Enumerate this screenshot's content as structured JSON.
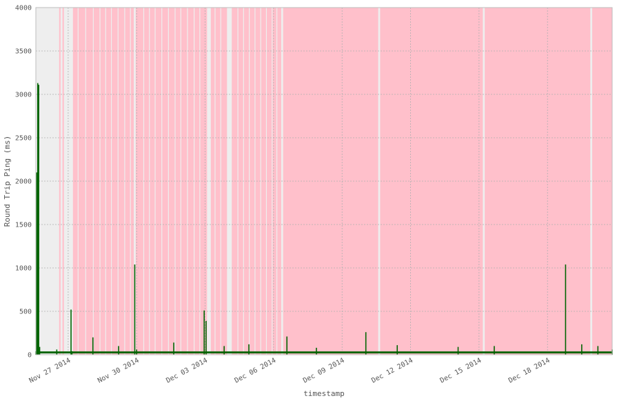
{
  "chart_data": {
    "type": "line",
    "title": "",
    "xlabel": "timestamp",
    "ylabel": "Round Trip Ping (ms)",
    "x_range": [
      "2014-11-25T14:00",
      "2014-12-20T20:00"
    ],
    "ylim": [
      0,
      4000
    ],
    "yticks": [
      0,
      500,
      1000,
      1500,
      2000,
      2500,
      3000,
      3500,
      4000
    ],
    "xticks": [
      {
        "value": "2014-11-27",
        "label": "Nov 27 2014"
      },
      {
        "value": "2014-11-30",
        "label": "Nov 30 2014"
      },
      {
        "value": "2014-12-03",
        "label": "Dec 03 2014"
      },
      {
        "value": "2014-12-06",
        "label": "Dec 06 2014"
      },
      {
        "value": "2014-12-09",
        "label": "Dec 09 2014"
      },
      {
        "value": "2014-12-12",
        "label": "Dec 12 2014"
      },
      {
        "value": "2014-12-15",
        "label": "Dec 15 2014"
      },
      {
        "value": "2014-12-18",
        "label": "Dec 18 2014"
      }
    ],
    "grid": true,
    "background_color": "#eeeeee",
    "highlight_color": "#ffc0cb",
    "line_color": "#006400",
    "series": [
      {
        "baseline_ms": 30,
        "points": [
          {
            "x": "2014-11-25T14:00",
            "y": 40
          },
          {
            "x": "2014-11-25T15:00",
            "y": 2100
          },
          {
            "x": "2014-11-25T16:00",
            "y": 3130
          },
          {
            "x": "2014-11-25T17:00",
            "y": 3110
          },
          {
            "x": "2014-11-25T18:00",
            "y": 90
          },
          {
            "x": "2014-11-26T12:00",
            "y": 60
          },
          {
            "x": "2014-11-27T03:00",
            "y": 520
          },
          {
            "x": "2014-11-27T04:00",
            "y": 40
          },
          {
            "x": "2014-11-28T02:00",
            "y": 200
          },
          {
            "x": "2014-11-29T05:00",
            "y": 100
          },
          {
            "x": "2014-11-29T22:00",
            "y": 1040
          },
          {
            "x": "2014-11-30T00:00",
            "y": 60
          },
          {
            "x": "2014-12-01T15:00",
            "y": 140
          },
          {
            "x": "2014-12-02T23:00",
            "y": 510
          },
          {
            "x": "2014-12-03T01:00",
            "y": 390
          },
          {
            "x": "2014-12-03T20:00",
            "y": 100
          },
          {
            "x": "2014-12-04T22:00",
            "y": 120
          },
          {
            "x": "2014-12-06T14:00",
            "y": 210
          },
          {
            "x": "2014-12-07T21:00",
            "y": 80
          },
          {
            "x": "2014-12-10T01:00",
            "y": 260
          },
          {
            "x": "2014-12-11T10:00",
            "y": 110
          },
          {
            "x": "2014-12-14T02:00",
            "y": 90
          },
          {
            "x": "2014-12-15T16:00",
            "y": 100
          },
          {
            "x": "2014-12-18T19:00",
            "y": 1040
          },
          {
            "x": "2014-12-19T12:00",
            "y": 120
          },
          {
            "x": "2014-12-20T05:00",
            "y": 100
          },
          {
            "x": "2014-12-20T20:00",
            "y": 60
          }
        ]
      }
    ],
    "highlight_spans": [
      [
        "2014-11-26T14:30",
        "2014-11-26T16:00"
      ],
      [
        "2014-11-26T18:00",
        "2014-11-26T19:30"
      ],
      [
        "2014-11-27T05:00",
        "2014-11-29T21:00"
      ],
      [
        "2014-11-29T23:00",
        "2014-12-03T02:00"
      ],
      [
        "2014-12-03T06:00",
        "2014-12-03T23:00"
      ],
      [
        "2014-12-04T04:00",
        "2014-12-06T08:00"
      ],
      [
        "2014-12-06T10:00",
        "2014-12-10T14:00"
      ],
      [
        "2014-12-10T16:00",
        "2014-12-15T04:00"
      ],
      [
        "2014-12-15T06:00",
        "2014-12-19T21:00"
      ],
      [
        "2014-12-19T23:00",
        "2014-12-20T20:00"
      ]
    ],
    "highlight_gaps": [
      "2014-11-27T10:00",
      "2014-11-27T18:00",
      "2014-11-28T02:00",
      "2014-11-28T09:00",
      "2014-11-28T15:00",
      "2014-11-28T21:00",
      "2014-11-29T04:00",
      "2014-11-29T11:00",
      "2014-11-29T17:00",
      "2014-11-30T07:00",
      "2014-11-30T13:00",
      "2014-11-30T19:00",
      "2014-12-01T02:00",
      "2014-12-01T09:00",
      "2014-12-01T16:00",
      "2014-12-01T22:00",
      "2014-12-02T05:00",
      "2014-12-02T12:00",
      "2014-12-02T18:00",
      "2014-12-03T10:00",
      "2014-12-03T16:00",
      "2014-12-04T10:00",
      "2014-12-04T16:00",
      "2014-12-04T22:00",
      "2014-12-05T04:00",
      "2014-12-05T10:00",
      "2014-12-05T16:00",
      "2014-12-05T22:00",
      "2014-12-06T03:00"
    ]
  }
}
